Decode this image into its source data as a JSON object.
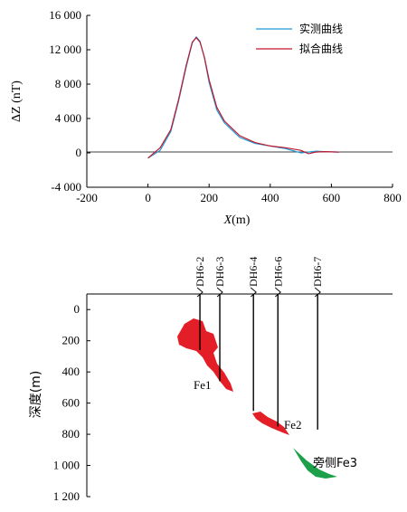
{
  "chart_data": [
    {
      "type": "line",
      "xlabel": "X",
      "xunit": "(m)",
      "ylabel": "ΔZ (nT)",
      "xlim": [
        -200,
        800
      ],
      "ylim": [
        -4000,
        16000
      ],
      "xticks": [
        -200,
        0,
        200,
        400,
        600,
        800
      ],
      "yticks": [
        -4000,
        0,
        4000,
        8000,
        12000,
        16000
      ],
      "xtick_labels": [
        "-200",
        "0",
        "200",
        "400",
        "600",
        "800"
      ],
      "ytick_labels": [
        "-4 000",
        "0",
        "4 000",
        "8 000",
        "12 000",
        "16 000"
      ],
      "legend_position": "top-right",
      "series": [
        {
          "name": "实测曲线",
          "color": "#1f9bd7",
          "x": [
            0,
            40,
            75,
            100,
            125,
            145,
            158,
            170,
            185,
            200,
            225,
            250,
            300,
            350,
            400,
            450,
            500,
            525,
            550,
            575,
            625
          ],
          "y": [
            -600,
            300,
            2500,
            6000,
            10000,
            12800,
            13500,
            13000,
            11000,
            8200,
            5000,
            3500,
            1800,
            1100,
            800,
            500,
            0,
            100,
            200,
            150,
            100
          ]
        },
        {
          "name": "拟合曲线",
          "color": "#c0182e",
          "x": [
            0,
            40,
            75,
            100,
            125,
            145,
            158,
            170,
            185,
            200,
            225,
            250,
            300,
            350,
            400,
            450,
            500,
            525,
            550,
            575,
            625
          ],
          "y": [
            -600,
            600,
            2700,
            6200,
            10200,
            12900,
            13400,
            12900,
            11100,
            8500,
            5300,
            3700,
            2000,
            1200,
            800,
            600,
            300,
            -100,
            100,
            150,
            100
          ]
        }
      ]
    },
    {
      "type": "section",
      "ylabel": "深度(m)",
      "ylim": [
        -100,
        1200
      ],
      "yticks": [
        0,
        200,
        400,
        600,
        800,
        1000,
        1200
      ],
      "ytick_labels": [
        "0",
        "200",
        "400",
        "600",
        "800",
        "1 000",
        "1 200"
      ],
      "drillholes": [
        {
          "name": "DH6-2",
          "x": 170,
          "bottom": 260
        },
        {
          "name": "DH6-3",
          "x": 235,
          "bottom": 460
        },
        {
          "name": "DH6-4",
          "x": 345,
          "bottom": 650
        },
        {
          "name": "DH6-6",
          "x": 425,
          "bottom": 750
        },
        {
          "name": "DH6-7",
          "x": 555,
          "bottom": 770
        }
      ],
      "ore_bodies": [
        {
          "name": "Fe1",
          "color": "#e41e26"
        },
        {
          "name": "Fe2",
          "color": "#e41e26"
        },
        {
          "name": "旁侧Fe3",
          "color": "#1ca14a"
        }
      ]
    }
  ]
}
